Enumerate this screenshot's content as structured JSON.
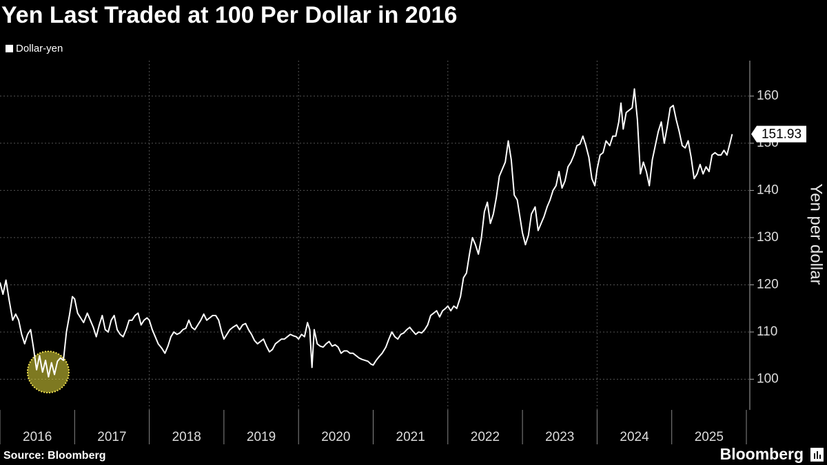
{
  "chart_data": {
    "type": "line",
    "title": "Yen Last Traded at 100 Per Dollar in 2016",
    "y_axis_label": "Yen per dollar",
    "source": "Source: Bloomberg",
    "brand": "Bloomberg",
    "legend_position": "top-left",
    "grid": true,
    "xlim": [
      2016,
      2026
    ],
    "xticks": [
      2016,
      2017,
      2018,
      2019,
      2020,
      2021,
      2022,
      2023,
      2024,
      2025
    ],
    "ylim": [
      93.5,
      167.5
    ],
    "yticks": [
      100,
      110,
      120,
      130,
      140,
      150,
      160
    ],
    "x": [
      2016.0,
      2016.04,
      2016.08,
      2016.12,
      2016.17,
      2016.21,
      2016.25,
      2016.29,
      2016.33,
      2016.37,
      2016.41,
      2016.45,
      2016.49,
      2016.53,
      2016.57,
      2016.61,
      2016.65,
      2016.69,
      2016.73,
      2016.77,
      2016.81,
      2016.85,
      2016.89,
      2016.93,
      2016.97,
      2017.0,
      2017.04,
      2017.08,
      2017.12,
      2017.17,
      2017.21,
      2017.25,
      2017.29,
      2017.33,
      2017.37,
      2017.41,
      2017.45,
      2017.49,
      2017.53,
      2017.57,
      2017.61,
      2017.65,
      2017.69,
      2017.73,
      2017.77,
      2017.81,
      2017.85,
      2017.89,
      2017.93,
      2017.97,
      2018.0,
      2018.04,
      2018.08,
      2018.12,
      2018.17,
      2018.21,
      2018.25,
      2018.29,
      2018.33,
      2018.37,
      2018.41,
      2018.45,
      2018.49,
      2018.53,
      2018.57,
      2018.61,
      2018.65,
      2018.69,
      2018.73,
      2018.77,
      2018.81,
      2018.85,
      2018.89,
      2018.93,
      2018.97,
      2019.0,
      2019.04,
      2019.08,
      2019.12,
      2019.17,
      2019.21,
      2019.25,
      2019.29,
      2019.33,
      2019.37,
      2019.41,
      2019.45,
      2019.49,
      2019.53,
      2019.57,
      2019.61,
      2019.65,
      2019.69,
      2019.73,
      2019.77,
      2019.81,
      2019.85,
      2019.89,
      2019.93,
      2019.97,
      2020.0,
      2020.04,
      2020.08,
      2020.12,
      2020.15,
      2020.18,
      2020.21,
      2020.25,
      2020.29,
      2020.33,
      2020.37,
      2020.41,
      2020.45,
      2020.49,
      2020.53,
      2020.57,
      2020.61,
      2020.65,
      2020.69,
      2020.73,
      2020.77,
      2020.81,
      2020.85,
      2020.89,
      2020.93,
      2020.97,
      2021.0,
      2021.04,
      2021.08,
      2021.12,
      2021.17,
      2021.21,
      2021.25,
      2021.29,
      2021.33,
      2021.37,
      2021.41,
      2021.45,
      2021.49,
      2021.53,
      2021.57,
      2021.61,
      2021.65,
      2021.69,
      2021.73,
      2021.77,
      2021.81,
      2021.85,
      2021.89,
      2021.93,
      2021.97,
      2022.0,
      2022.04,
      2022.08,
      2022.12,
      2022.17,
      2022.21,
      2022.25,
      2022.29,
      2022.33,
      2022.37,
      2022.41,
      2022.45,
      2022.49,
      2022.53,
      2022.57,
      2022.61,
      2022.65,
      2022.69,
      2022.73,
      2022.77,
      2022.81,
      2022.85,
      2022.89,
      2022.93,
      2022.97,
      2023.0,
      2023.04,
      2023.08,
      2023.12,
      2023.17,
      2023.21,
      2023.25,
      2023.29,
      2023.33,
      2023.37,
      2023.41,
      2023.45,
      2023.49,
      2023.53,
      2023.57,
      2023.61,
      2023.65,
      2023.69,
      2023.73,
      2023.77,
      2023.81,
      2023.85,
      2023.89,
      2023.93,
      2023.97,
      2024.0,
      2024.04,
      2024.08,
      2024.12,
      2024.17,
      2024.21,
      2024.25,
      2024.29,
      2024.32,
      2024.35,
      2024.39,
      2024.43,
      2024.47,
      2024.5,
      2024.54,
      2024.58,
      2024.62,
      2024.66,
      2024.7,
      2024.74,
      2024.78,
      2024.82,
      2024.86,
      2024.9,
      2024.94,
      2024.98,
      2025.02,
      2025.06,
      2025.1,
      2025.14,
      2025.18,
      2025.22,
      2025.26,
      2025.3,
      2025.34,
      2025.38,
      2025.42,
      2025.46,
      2025.5,
      2025.54,
      2025.58,
      2025.62,
      2025.66,
      2025.7,
      2025.74,
      2025.78,
      2025.81
    ],
    "series": [
      {
        "name": "Dollar-yen",
        "color": "#ffffff",
        "values": [
          120.5,
          118.0,
          121.0,
          117.0,
          112.5,
          113.8,
          112.5,
          109.5,
          107.5,
          109.5,
          110.5,
          106.5,
          102.0,
          105.0,
          101.5,
          104.0,
          100.5,
          103.5,
          101.0,
          103.8,
          104.5,
          104.0,
          110.0,
          113.5,
          117.5,
          117.0,
          114.0,
          113.0,
          112.0,
          114.0,
          112.5,
          111.0,
          109.0,
          111.5,
          113.5,
          110.5,
          110.0,
          112.5,
          113.5,
          110.5,
          109.5,
          109.0,
          110.5,
          112.5,
          112.5,
          113.5,
          114.0,
          111.5,
          112.5,
          113.0,
          112.5,
          110.5,
          109.0,
          107.5,
          106.5,
          105.5,
          107.0,
          109.0,
          110.0,
          109.5,
          109.8,
          110.5,
          110.8,
          112.5,
          111.0,
          110.5,
          111.5,
          112.5,
          113.8,
          112.5,
          113.0,
          113.5,
          113.5,
          112.5,
          110.0,
          108.5,
          109.5,
          110.5,
          111.0,
          111.5,
          110.5,
          111.5,
          111.8,
          110.5,
          109.5,
          108.2,
          107.5,
          108.0,
          108.5,
          107.0,
          105.8,
          106.3,
          107.5,
          108.0,
          108.5,
          108.5,
          109.0,
          109.5,
          109.2,
          109.0,
          108.5,
          109.5,
          109.0,
          112.0,
          110.5,
          102.5,
          110.5,
          107.5,
          107.0,
          106.8,
          107.5,
          108.0,
          107.0,
          107.3,
          106.8,
          105.5,
          106.0,
          106.0,
          105.5,
          105.5,
          105.0,
          104.5,
          104.2,
          104.0,
          103.8,
          103.2,
          103.0,
          104.0,
          104.8,
          105.5,
          106.8,
          108.5,
          110.0,
          109.0,
          108.5,
          109.5,
          109.8,
          110.5,
          111.0,
          110.2,
          109.5,
          110.0,
          109.8,
          110.5,
          111.5,
          113.5,
          114.0,
          114.5,
          113.2,
          114.5,
          115.0,
          115.5,
          114.5,
          115.5,
          115.0,
          117.5,
          121.5,
          122.5,
          126.5,
          130.0,
          128.5,
          126.5,
          130.0,
          135.5,
          137.5,
          133.0,
          135.0,
          138.5,
          143.0,
          144.5,
          146.0,
          150.5,
          146.5,
          139.0,
          138.0,
          134.0,
          131.0,
          128.5,
          130.5,
          135.0,
          136.5,
          131.5,
          133.0,
          134.5,
          136.5,
          138.0,
          140.0,
          141.0,
          144.0,
          140.5,
          142.0,
          145.0,
          146.0,
          147.5,
          149.5,
          149.8,
          151.5,
          149.5,
          147.0,
          142.5,
          141.0,
          144.5,
          147.5,
          148.0,
          150.5,
          149.5,
          151.5,
          151.5,
          154.5,
          158.5,
          153.0,
          156.5,
          157.0,
          157.5,
          161.5,
          155.0,
          143.5,
          146.0,
          144.0,
          141.0,
          146.5,
          149.5,
          152.5,
          154.5,
          150.0,
          153.5,
          157.5,
          158.0,
          155.0,
          152.5,
          149.5,
          149.0,
          150.5,
          147.0,
          142.5,
          143.5,
          145.5,
          143.5,
          145.0,
          144.0,
          147.5,
          148.0,
          147.5,
          147.5,
          148.5,
          147.5,
          150.0,
          151.93
        ]
      }
    ]
  }
}
